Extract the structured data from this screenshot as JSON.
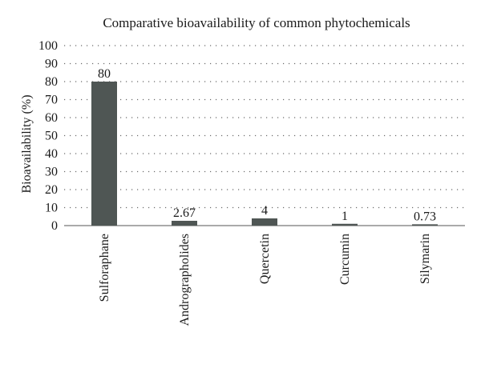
{
  "chart_data": {
    "type": "bar",
    "title": "Comparative bioavailability of common phytochemicals",
    "xlabel": "",
    "ylabel": "Bioavailability (%)",
    "ylim": [
      0,
      100
    ],
    "yticks": [
      0,
      10,
      20,
      30,
      40,
      50,
      60,
      70,
      80,
      90,
      100
    ],
    "grid": true,
    "bar_color": "#4f5654",
    "categories": [
      "Sulforaphane",
      "Andrographolides",
      "Quercetin",
      "Curcumin",
      "Silymarin"
    ],
    "values": [
      80,
      2.67,
      4,
      1,
      0.73
    ],
    "data_labels": [
      "80",
      "2.67",
      "4",
      "1",
      "0.73"
    ]
  }
}
